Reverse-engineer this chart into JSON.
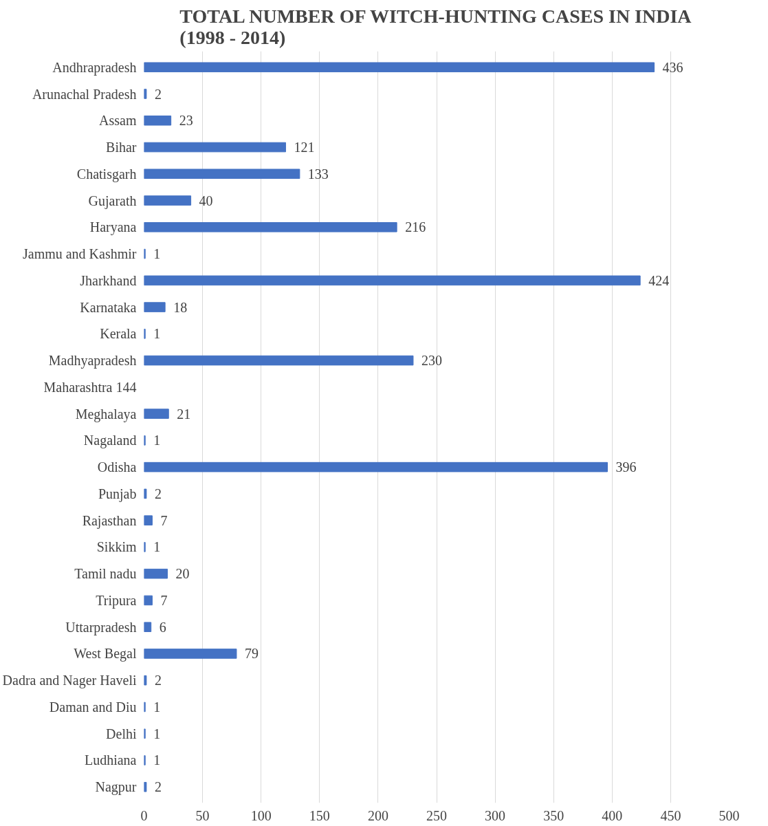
{
  "chart_data": {
    "type": "bar",
    "orientation": "horizontal",
    "title": "TOTAL NUMBER OF WITCH-HUNTING CASES IN INDIA (1998 - 2014)",
    "categories": [
      "Andhrapradesh",
      "Arunachal Pradesh",
      "Assam",
      "Bihar",
      "Chatisgarh",
      "Gujarath",
      "Haryana",
      "Jammu and Kashmir",
      "Jharkhand",
      "Karnataka",
      "Kerala",
      "Madhyapradesh",
      "Maharashtra 144",
      "Meghalaya",
      "Nagaland",
      "Odisha",
      "Punjab",
      "Rajasthan",
      "Sikkim",
      "Tamil nadu",
      "Tripura",
      "Uttarpradesh",
      "West Begal",
      "Dadra and Nager Haveli",
      "Daman and Diu",
      "Delhi",
      "Ludhiana",
      "Nagpur"
    ],
    "values": [
      436,
      2,
      23,
      121,
      133,
      40,
      216,
      1,
      424,
      18,
      1,
      230,
      null,
      21,
      1,
      396,
      2,
      7,
      1,
      20,
      7,
      6,
      79,
      2,
      1,
      1,
      1,
      2
    ],
    "color": "#4472c4",
    "xlim": [
      0,
      500
    ],
    "xticks": [
      0,
      50,
      100,
      150,
      200,
      250,
      300,
      350,
      400,
      450,
      500
    ],
    "grid": "x",
    "data_labels": true
  }
}
